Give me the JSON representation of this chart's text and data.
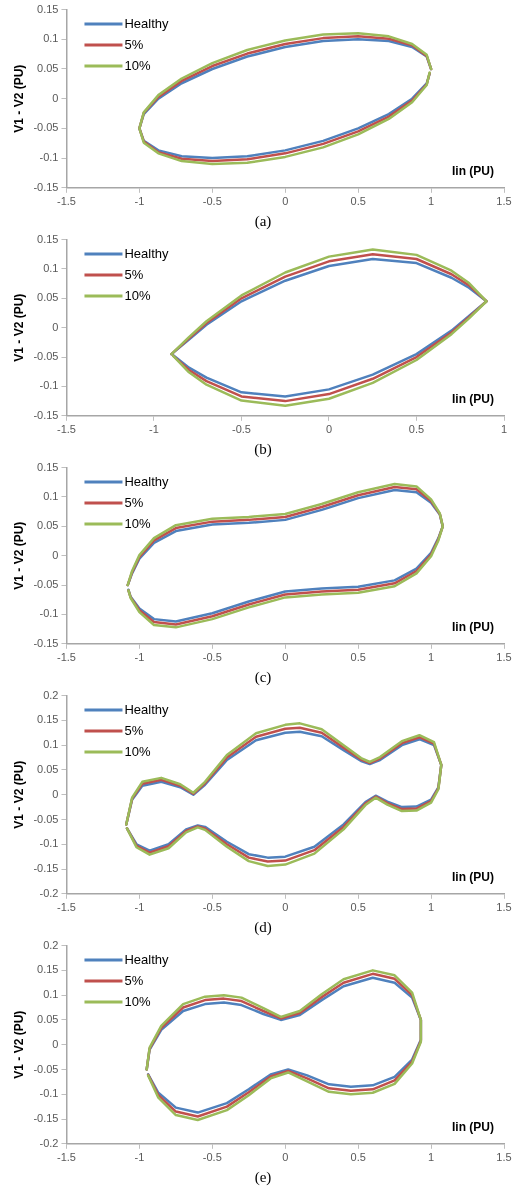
{
  "chart_data": [
    {
      "type": "line",
      "ylabel": "V1 - V2 (PU)",
      "xlabel": "Iin (PU)",
      "annotations": [
        "(a)"
      ],
      "legend": "top left",
      "marker": "none",
      "line_style": "solid",
      "xlim": [
        -1.5,
        1.5
      ],
      "xticks": [
        -1.5,
        -1,
        -0.5,
        0,
        0.5,
        1,
        1.5
      ],
      "ylim": [
        -0.15,
        0.15
      ],
      "yticks": [
        -0.15,
        -0.1,
        -0.05,
        0,
        0.05,
        0.1,
        0.15
      ],
      "x": [
        1,
        0.97,
        0.87,
        0.71,
        0.5,
        0.26,
        0,
        -0.26,
        -0.5,
        -0.71,
        -0.87,
        -0.97,
        -1,
        -0.97,
        -0.87,
        -0.71,
        -0.5,
        -0.26,
        0,
        0.26,
        0.5,
        0.71,
        0.87,
        0.97,
        0.99
      ],
      "series": [
        {
          "name": "Healthy",
          "color": "#4f81bd",
          "values": [
            0.05,
            0.071,
            0.087,
            0.097,
            0.1,
            0.097,
            0.087,
            0.071,
            0.05,
            0.026,
            0,
            -0.026,
            -0.05,
            -0.071,
            -0.087,
            -0.097,
            -0.1,
            -0.097,
            -0.087,
            -0.071,
            -0.05,
            -0.026,
            0,
            0.026,
            0.042
          ]
        },
        {
          "name": "5%",
          "color": "#c0504d",
          "values": [
            0.05,
            0.072,
            0.09,
            0.101,
            0.105,
            0.102,
            0.092,
            0.076,
            0.055,
            0.03,
            0.003,
            -0.024,
            -0.05,
            -0.072,
            -0.09,
            -0.101,
            -0.105,
            -0.102,
            -0.092,
            -0.076,
            -0.055,
            -0.03,
            -0.003,
            0.024,
            0.043
          ]
        },
        {
          "name": "10%",
          "color": "#9bbb59",
          "values": [
            0.05,
            0.074,
            0.092,
            0.105,
            0.11,
            0.108,
            0.098,
            0.082,
            0.06,
            0.034,
            0.006,
            -0.023,
            -0.05,
            -0.074,
            -0.092,
            -0.105,
            -0.11,
            -0.108,
            -0.098,
            -0.082,
            -0.06,
            -0.034,
            -0.006,
            0.023,
            0.044
          ]
        }
      ]
    },
    {
      "type": "line",
      "ylabel": "V1 - V2 (PU)",
      "xlabel": "Iin (PU)",
      "annotations": [
        "(b)"
      ],
      "legend": "top left",
      "marker": "none",
      "line_style": "solid",
      "xlim": [
        -1.5,
        1
      ],
      "xticks": [
        -1.5,
        -1,
        -0.5,
        0,
        0.5,
        1
      ],
      "ylim": [
        -0.15,
        0.15
      ],
      "yticks": [
        -0.15,
        -0.1,
        -0.05,
        0,
        0.05,
        0.1,
        0.15
      ],
      "x": [
        -0.9,
        -0.8,
        -0.7,
        -0.5,
        -0.25,
        0,
        0.25,
        0.5,
        0.7,
        0.8,
        0.9,
        0.8,
        0.7,
        0.5,
        0.25,
        0,
        -0.25,
        -0.5,
        -0.7,
        -0.8,
        -0.89
      ],
      "series": [
        {
          "name": "Healthy",
          "color": "#4f81bd",
          "values": [
            -0.045,
            -0.02,
            0.005,
            0.045,
            0.08,
            0.105,
            0.117,
            0.11,
            0.085,
            0.068,
            0.045,
            0.02,
            -0.005,
            -0.045,
            -0.08,
            -0.105,
            -0.117,
            -0.11,
            -0.085,
            -0.068,
            -0.047
          ]
        },
        {
          "name": "5%",
          "color": "#c0504d",
          "values": [
            -0.045,
            -0.018,
            0.008,
            0.05,
            0.087,
            0.113,
            0.125,
            0.117,
            0.091,
            0.072,
            0.045,
            0.018,
            -0.008,
            -0.05,
            -0.087,
            -0.113,
            -0.125,
            -0.117,
            -0.091,
            -0.072,
            -0.048
          ]
        },
        {
          "name": "10%",
          "color": "#9bbb59",
          "values": [
            -0.045,
            -0.016,
            0.011,
            0.055,
            0.094,
            0.121,
            0.133,
            0.124,
            0.097,
            0.076,
            0.045,
            0.016,
            -0.011,
            -0.055,
            -0.094,
            -0.121,
            -0.133,
            -0.124,
            -0.097,
            -0.076,
            -0.048
          ]
        }
      ]
    },
    {
      "type": "line",
      "ylabel": "V1 - V2 (PU)",
      "xlabel": "Iin (PU)",
      "annotations": [
        "(c)"
      ],
      "legend": "top left",
      "marker": "none",
      "line_style": "solid",
      "xlim": [
        -1.5,
        1.5
      ],
      "xticks": [
        -1.5,
        -1,
        -0.5,
        0,
        0.5,
        1,
        1.5
      ],
      "ylim": [
        -0.15,
        0.15
      ],
      "yticks": [
        -0.15,
        -0.1,
        -0.05,
        0,
        0.05,
        0.1,
        0.15
      ],
      "x": [
        -1.08,
        -1.05,
        -1,
        -0.9,
        -0.75,
        -0.5,
        -0.25,
        0,
        0.25,
        0.5,
        0.75,
        0.9,
        1,
        1.06,
        1.08,
        1.05,
        1,
        0.9,
        0.75,
        0.5,
        0.25,
        0,
        -0.25,
        -0.5,
        -0.75,
        -0.9,
        -1,
        -1.06,
        -1.075
      ],
      "series": [
        {
          "name": "Healthy",
          "color": "#4f81bd",
          "values": [
            -0.05,
            -0.03,
            -0.005,
            0.022,
            0.042,
            0.053,
            0.056,
            0.061,
            0.078,
            0.098,
            0.112,
            0.108,
            0.09,
            0.07,
            0.05,
            0.03,
            0.005,
            -0.022,
            -0.042,
            -0.053,
            -0.056,
            -0.061,
            -0.078,
            -0.098,
            -0.112,
            -0.108,
            -0.09,
            -0.07,
            -0.058
          ]
        },
        {
          "name": "5%",
          "color": "#c0504d",
          "values": [
            -0.05,
            -0.028,
            -0.002,
            0.026,
            0.047,
            0.058,
            0.061,
            0.066,
            0.083,
            0.103,
            0.117,
            0.113,
            0.093,
            0.071,
            0.05,
            0.028,
            0.002,
            -0.026,
            -0.047,
            -0.058,
            -0.061,
            -0.066,
            -0.083,
            -0.103,
            -0.117,
            -0.113,
            -0.093,
            -0.071,
            -0.059
          ]
        },
        {
          "name": "10%",
          "color": "#9bbb59",
          "values": [
            -0.05,
            -0.026,
            0.001,
            0.03,
            0.052,
            0.063,
            0.066,
            0.071,
            0.088,
            0.108,
            0.122,
            0.118,
            0.096,
            0.072,
            0.05,
            0.026,
            -0.001,
            -0.03,
            -0.052,
            -0.063,
            -0.066,
            -0.071,
            -0.088,
            -0.108,
            -0.122,
            -0.118,
            -0.096,
            -0.072,
            -0.059
          ]
        }
      ]
    },
    {
      "type": "line",
      "ylabel": "V1 - V2 (PU)",
      "xlabel": "Iin (PU)",
      "annotations": [
        "(d)"
      ],
      "legend": "top left",
      "marker": "none",
      "line_style": "solid",
      "xlim": [
        -1.5,
        1.5
      ],
      "xticks": [
        -1.5,
        -1,
        -0.5,
        0,
        0.5,
        1,
        1.5
      ],
      "ylim": [
        -0.2,
        0.2
      ],
      "yticks": [
        -0.2,
        -0.15,
        -0.1,
        -0.05,
        0,
        0.05,
        0.1,
        0.15,
        0.2
      ],
      "x": [
        -1.09,
        -1.05,
        -0.98,
        -0.85,
        -0.72,
        -0.63,
        -0.55,
        -0.4,
        -0.2,
        0,
        0.1,
        0.25,
        0.4,
        0.52,
        0.58,
        0.65,
        0.8,
        0.92,
        1.02,
        1.07,
        1.05,
        1,
        0.9,
        0.8,
        0.7,
        0.62,
        0.55,
        0.4,
        0.2,
        0,
        -0.12,
        -0.25,
        -0.4,
        -0.55,
        -0.6,
        -0.68,
        -0.8,
        -0.93,
        -1.02,
        -1.085
      ],
      "series": [
        {
          "name": "Healthy",
          "color": "#4f81bd",
          "values": [
            -0.06,
            -0.01,
            0.018,
            0.026,
            0.015,
            0,
            0.02,
            0.07,
            0.11,
            0.125,
            0.127,
            0.118,
            0.09,
            0.068,
            0.062,
            0.07,
            0.1,
            0.112,
            0.1,
            0.06,
            0.015,
            -0.01,
            -0.024,
            -0.025,
            -0.014,
            -0.002,
            -0.015,
            -0.06,
            -0.105,
            -0.125,
            -0.127,
            -0.12,
            -0.095,
            -0.065,
            -0.062,
            -0.07,
            -0.1,
            -0.113,
            -0.1,
            -0.068
          ]
        },
        {
          "name": "5%",
          "color": "#c0504d",
          "values": [
            -0.06,
            -0.008,
            0.022,
            0.03,
            0.018,
            0.002,
            0.023,
            0.075,
            0.117,
            0.133,
            0.135,
            0.125,
            0.095,
            0.071,
            0.064,
            0.073,
            0.104,
            0.116,
            0.103,
            0.06,
            0.013,
            -0.013,
            -0.028,
            -0.029,
            -0.017,
            -0.004,
            -0.018,
            -0.065,
            -0.112,
            -0.133,
            -0.135,
            -0.127,
            -0.1,
            -0.068,
            -0.064,
            -0.073,
            -0.104,
            -0.117,
            -0.103,
            -0.068
          ]
        },
        {
          "name": "10%",
          "color": "#9bbb59",
          "values": [
            -0.06,
            -0.006,
            0.026,
            0.034,
            0.021,
            0.004,
            0.026,
            0.08,
            0.124,
            0.141,
            0.144,
            0.132,
            0.1,
            0.074,
            0.066,
            0.076,
            0.108,
            0.12,
            0.106,
            0.06,
            0.011,
            -0.016,
            -0.032,
            -0.033,
            -0.02,
            -0.006,
            -0.021,
            -0.07,
            -0.119,
            -0.141,
            -0.144,
            -0.134,
            -0.105,
            -0.071,
            -0.066,
            -0.076,
            -0.108,
            -0.121,
            -0.106,
            -0.068
          ]
        }
      ]
    },
    {
      "type": "line",
      "ylabel": "V1 - V2 (PU)",
      "xlabel": "Iin (PU)",
      "annotations": [
        "(e)"
      ],
      "legend": "top left",
      "marker": "none",
      "line_style": "solid",
      "xlim": [
        -1.5,
        1.5
      ],
      "xticks": [
        -1.5,
        -1,
        -0.5,
        0,
        0.5,
        1,
        1.5
      ],
      "ylim": [
        -0.2,
        0.2
      ],
      "yticks": [
        -0.2,
        -0.15,
        -0.1,
        -0.05,
        0,
        0.05,
        0.1,
        0.15,
        0.2
      ],
      "x": [
        -0.95,
        -0.93,
        -0.85,
        -0.7,
        -0.55,
        -0.42,
        -0.3,
        -0.15,
        -0.03,
        0.1,
        0.25,
        0.4,
        0.6,
        0.75,
        0.87,
        0.93,
        0.93,
        0.87,
        0.75,
        0.6,
        0.45,
        0.3,
        0.15,
        0.02,
        -0.1,
        -0.25,
        -0.4,
        -0.6,
        -0.75,
        -0.87,
        -0.94
      ],
      "series": [
        {
          "name": "Healthy",
          "color": "#4f81bd",
          "values": [
            -0.05,
            -0.01,
            0.03,
            0.068,
            0.082,
            0.085,
            0.08,
            0.062,
            0.05,
            0.06,
            0.09,
            0.118,
            0.135,
            0.125,
            0.095,
            0.05,
            0.01,
            -0.03,
            -0.065,
            -0.082,
            -0.085,
            -0.08,
            -0.062,
            -0.05,
            -0.06,
            -0.09,
            -0.118,
            -0.137,
            -0.127,
            -0.097,
            -0.06
          ]
        },
        {
          "name": "5%",
          "color": "#c0504d",
          "values": [
            -0.05,
            -0.008,
            0.034,
            0.075,
            0.09,
            0.093,
            0.088,
            0.068,
            0.053,
            0.064,
            0.096,
            0.125,
            0.143,
            0.133,
            0.1,
            0.05,
            0.008,
            -0.034,
            -0.072,
            -0.09,
            -0.093,
            -0.088,
            -0.068,
            -0.053,
            -0.064,
            -0.096,
            -0.125,
            -0.145,
            -0.135,
            -0.102,
            -0.061
          ]
        },
        {
          "name": "10%",
          "color": "#9bbb59",
          "values": [
            -0.05,
            -0.006,
            0.038,
            0.082,
            0.097,
            0.1,
            0.095,
            0.074,
            0.056,
            0.068,
            0.102,
            0.132,
            0.15,
            0.14,
            0.105,
            0.05,
            0.006,
            -0.038,
            -0.079,
            -0.097,
            -0.1,
            -0.095,
            -0.074,
            -0.056,
            -0.068,
            -0.102,
            -0.132,
            -0.152,
            -0.142,
            -0.107,
            -0.062
          ]
        }
      ]
    }
  ]
}
